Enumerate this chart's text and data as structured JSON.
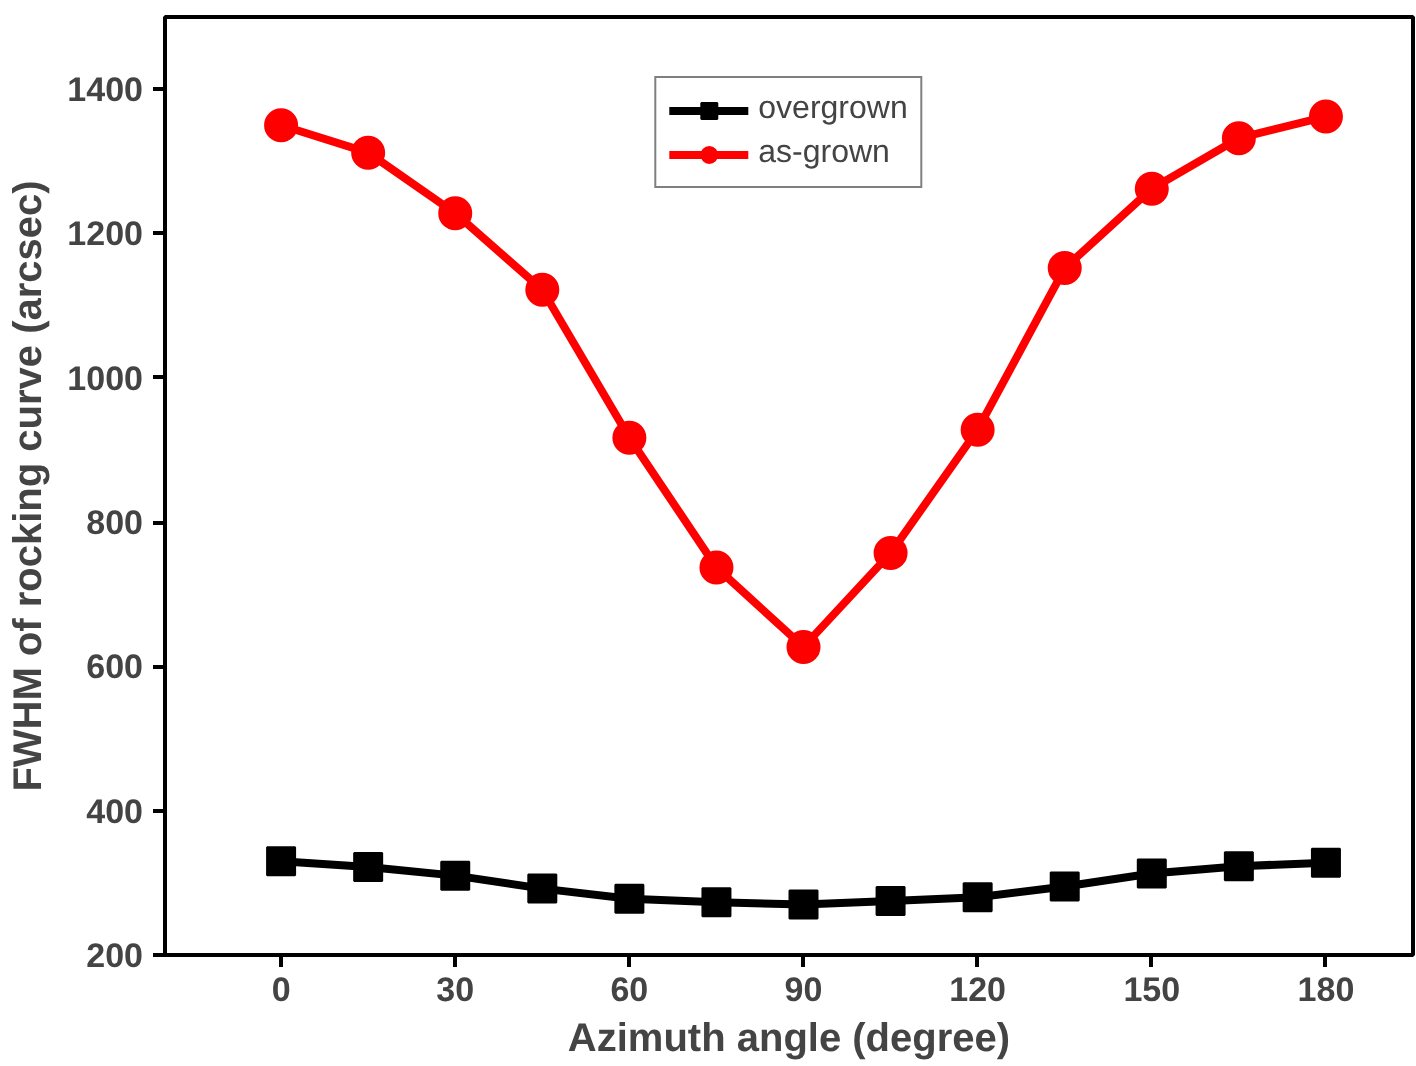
{
  "chart_data": {
    "type": "line",
    "xlabel": "Azimuth angle (degree)",
    "ylabel": "FWHM of rocking curve (arcsec)",
    "x": [
      0,
      15,
      30,
      45,
      60,
      75,
      90,
      105,
      120,
      135,
      150,
      165,
      180
    ],
    "series": [
      {
        "name": "overgrown",
        "color": "#000000",
        "marker": "square",
        "values": [
          330,
          322,
          310,
          292,
          278,
          273,
          270,
          275,
          280,
          295,
          313,
          323,
          328
        ]
      },
      {
        "name": "as-grown",
        "color": "#ff0000",
        "marker": "circle",
        "values": [
          1350,
          1312,
          1228,
          1122,
          917,
          737,
          627,
          757,
          928,
          1152,
          1262,
          1332,
          1362
        ]
      }
    ],
    "xlim": [
      -20,
      195
    ],
    "xticks": [
      0,
      30,
      60,
      90,
      120,
      150,
      180
    ],
    "ylim": [
      200,
      1500
    ],
    "yticks": [
      200,
      400,
      600,
      800,
      1000,
      1200,
      1400
    ],
    "grid": false,
    "legend": "top",
    "line_style": "solid"
  }
}
